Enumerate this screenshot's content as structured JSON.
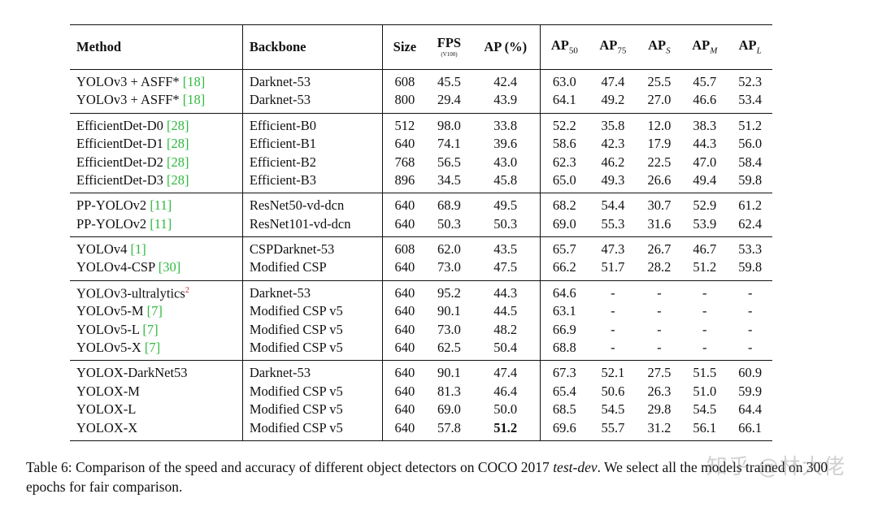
{
  "headers": {
    "method": "Method",
    "backbone": "Backbone",
    "size": "Size",
    "fps": "FPS",
    "fps_unit": "(V100)",
    "ap": "AP (%)",
    "ap50_base": "AP",
    "ap50_sub": "50",
    "ap75_base": "AP",
    "ap75_sub": "75",
    "aps_base": "AP",
    "aps_sub": "S",
    "apm_base": "AP",
    "apm_sub": "M",
    "apl_base": "AP",
    "apl_sub": "L"
  },
  "groups": [
    {
      "rows": [
        {
          "method": "YOLOv3 + ASFF* ",
          "ref": "[18]",
          "backbone": "Darknet-53",
          "size": "608",
          "fps": "45.5",
          "ap": "42.4",
          "ap50": "63.0",
          "ap75": "47.4",
          "aps": "25.5",
          "apm": "45.7",
          "apl": "52.3"
        },
        {
          "method": "YOLOv3 + ASFF* ",
          "ref": "[18]",
          "backbone": "Darknet-53",
          "size": "800",
          "fps": "29.4",
          "ap": "43.9",
          "ap50": "64.1",
          "ap75": "49.2",
          "aps": "27.0",
          "apm": "46.6",
          "apl": "53.4"
        }
      ]
    },
    {
      "rows": [
        {
          "method": "EfficientDet-D0 ",
          "ref": "[28]",
          "backbone": "Efficient-B0",
          "size": "512",
          "fps": "98.0",
          "ap": "33.8",
          "ap50": "52.2",
          "ap75": "35.8",
          "aps": "12.0",
          "apm": "38.3",
          "apl": "51.2"
        },
        {
          "method": "EfficientDet-D1 ",
          "ref": "[28]",
          "backbone": "Efficient-B1",
          "size": "640",
          "fps": "74.1",
          "ap": "39.6",
          "ap50": "58.6",
          "ap75": "42.3",
          "aps": "17.9",
          "apm": "44.3",
          "apl": "56.0"
        },
        {
          "method": "EfficientDet-D2 ",
          "ref": "[28]",
          "backbone": "Efficient-B2",
          "size": "768",
          "fps": "56.5",
          "ap": "43.0",
          "ap50": "62.3",
          "ap75": "46.2",
          "aps": "22.5",
          "apm": "47.0",
          "apl": "58.4"
        },
        {
          "method": "EfficientDet-D3 ",
          "ref": "[28]",
          "backbone": "Efficient-B3",
          "size": "896",
          "fps": "34.5",
          "ap": "45.8",
          "ap50": "65.0",
          "ap75": "49.3",
          "aps": "26.6",
          "apm": "49.4",
          "apl": "59.8"
        }
      ]
    },
    {
      "rows": [
        {
          "method": "PP-YOLOv2 ",
          "ref": "[11]",
          "backbone": "ResNet50-vd-dcn",
          "size": "640",
          "fps": "68.9",
          "ap": "49.5",
          "ap50": "68.2",
          "ap75": "54.4",
          "aps": "30.7",
          "apm": "52.9",
          "apl": "61.2"
        },
        {
          "method": "PP-YOLOv2 ",
          "ref": "[11]",
          "backbone": "ResNet101-vd-dcn",
          "size": "640",
          "fps": "50.3",
          "ap": "50.3",
          "ap50": "69.0",
          "ap75": "55.3",
          "aps": "31.6",
          "apm": "53.9",
          "apl": "62.4"
        }
      ]
    },
    {
      "rows": [
        {
          "method": "YOLOv4 ",
          "ref": "[1]",
          "backbone": "CSPDarknet-53",
          "size": "608",
          "fps": "62.0",
          "ap": "43.5",
          "ap50": "65.7",
          "ap75": "47.3",
          "aps": "26.7",
          "apm": "46.7",
          "apl": "53.3"
        },
        {
          "method": "YOLOv4-CSP ",
          "ref": "[30]",
          "backbone": "Modified CSP",
          "size": "640",
          "fps": "73.0",
          "ap": "47.5",
          "ap50": "66.2",
          "ap75": "51.7",
          "aps": "28.2",
          "apm": "51.2",
          "apl": "59.8"
        }
      ]
    },
    {
      "rows": [
        {
          "method": "YOLOv3-ultralytics",
          "sup": "2",
          "backbone": "Darknet-53",
          "size": "640",
          "fps": "95.2",
          "ap": "44.3",
          "ap50": "64.6",
          "ap75": "-",
          "aps": "-",
          "apm": "-",
          "apl": "-"
        },
        {
          "method": "YOLOv5-M ",
          "ref": "[7]",
          "backbone": "Modified CSP v5",
          "size": "640",
          "fps": "90.1",
          "ap": "44.5",
          "ap50": "63.1",
          "ap75": "-",
          "aps": "-",
          "apm": "-",
          "apl": "-"
        },
        {
          "method": "YOLOv5-L ",
          "ref": "[7]",
          "backbone": "Modified CSP v5",
          "size": "640",
          "fps": "73.0",
          "ap": "48.2",
          "ap50": "66.9",
          "ap75": "-",
          "aps": "-",
          "apm": "-",
          "apl": "-"
        },
        {
          "method": "YOLOv5-X ",
          "ref": "[7]",
          "backbone": "Modified CSP v5",
          "size": "640",
          "fps": "62.5",
          "ap": "50.4",
          "ap50": "68.8",
          "ap75": "-",
          "aps": "-",
          "apm": "-",
          "apl": "-"
        }
      ]
    },
    {
      "rows": [
        {
          "method": "YOLOX-DarkNet53",
          "backbone": "Darknet-53",
          "size": "640",
          "fps": "90.1",
          "ap": "47.4",
          "ap50": "67.3",
          "ap75": "52.1",
          "aps": "27.5",
          "apm": "51.5",
          "apl": "60.9"
        },
        {
          "method": "YOLOX-M",
          "backbone": "Modified CSP v5",
          "size": "640",
          "fps": "81.3",
          "ap": "46.4",
          "ap50": "65.4",
          "ap75": "50.6",
          "aps": "26.3",
          "apm": "51.0",
          "apl": "59.9"
        },
        {
          "method": "YOLOX-L",
          "backbone": "Modified CSP v5",
          "size": "640",
          "fps": "69.0",
          "ap": "50.0",
          "ap50": "68.5",
          "ap75": "54.5",
          "aps": "29.8",
          "apm": "54.5",
          "apl": "64.4"
        },
        {
          "method": "YOLOX-X",
          "backbone": "Modified CSP v5",
          "size": "640",
          "fps": "57.8",
          "ap": "51.2",
          "ap_bold": true,
          "ap50": "69.6",
          "ap75": "55.7",
          "aps": "31.2",
          "apm": "56.1",
          "apl": "66.1"
        }
      ]
    }
  ],
  "caption": {
    "prefix": "Table 6: Comparison of the speed and accuracy of different object detectors on COCO 2017 ",
    "italic": "test-dev",
    "suffix": ". We select all the models trained on 300 epochs for fair comparison."
  },
  "watermark": "知乎 @林大佬"
}
